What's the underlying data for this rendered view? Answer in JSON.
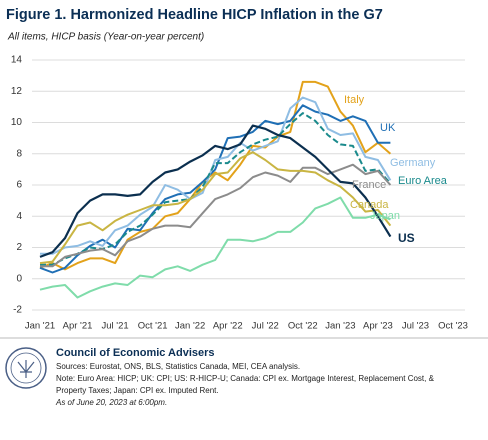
{
  "chart_data": {
    "type": "line",
    "title": "Figure 1. Harmonized Headline HICP Inflation in the G7",
    "subtitle": "All items, HICP basis (Year-on-year percent)",
    "categories": [
      "Jan '21",
      null,
      null,
      "Apr '21",
      null,
      null,
      "Jul '21",
      null,
      null,
      "Oct '21",
      null,
      null,
      "Jan '22",
      null,
      null,
      "Apr '22",
      null,
      null,
      "Jul '22",
      null,
      null,
      "Oct '22",
      null,
      null,
      "Jan '23",
      null,
      null,
      "Apr '23",
      null,
      null,
      "Jul '23",
      null,
      null,
      "Oct '23"
    ],
    "ylim": [
      -2,
      14
    ],
    "yticks": [
      -2,
      0,
      2,
      4,
      6,
      8,
      10,
      12,
      14
    ],
    "grid": true,
    "series": [
      {
        "name": "Italy",
        "color": "#e3a21a",
        "values": [
          0.7,
          1.0,
          0.6,
          1.0,
          1.3,
          1.3,
          1.0,
          2.5,
          3.0,
          3.2,
          4.0,
          4.2,
          5.1,
          6.2,
          6.8,
          6.3,
          7.3,
          8.5,
          8.4,
          9.1,
          9.4,
          12.6,
          12.6,
          12.3,
          10.7,
          9.8,
          8.1,
          8.7,
          8.0,
          null,
          null,
          null,
          null,
          null
        ]
      },
      {
        "name": "UK",
        "color": "#1f6fb5",
        "values": [
          0.7,
          0.4,
          0.7,
          1.5,
          2.1,
          2.5,
          2.0,
          3.2,
          3.1,
          4.2,
          5.1,
          5.4,
          5.5,
          6.2,
          7.0,
          9.0,
          9.1,
          9.4,
          10.1,
          9.9,
          10.1,
          11.1,
          10.7,
          10.5,
          10.1,
          10.4,
          10.1,
          8.7,
          8.7,
          null,
          null,
          null,
          null,
          null
        ]
      },
      {
        "name": "Germany",
        "color": "#8fbde3",
        "values": [
          1.6,
          1.6,
          2.0,
          2.1,
          2.4,
          2.1,
          3.1,
          3.4,
          4.1,
          4.6,
          6.0,
          5.7,
          5.1,
          5.5,
          7.6,
          7.8,
          8.7,
          8.2,
          8.5,
          8.8,
          10.9,
          11.6,
          11.3,
          9.6,
          9.2,
          9.3,
          7.8,
          7.6,
          6.3,
          null,
          null,
          null,
          null,
          null
        ]
      },
      {
        "name": "Euro Area",
        "color": "#1a8a8c",
        "style": "dashed",
        "values": [
          0.9,
          0.9,
          1.3,
          1.6,
          2.0,
          1.9,
          2.2,
          3.0,
          3.4,
          4.1,
          4.9,
          5.0,
          5.1,
          5.9,
          7.4,
          7.4,
          8.1,
          8.6,
          8.9,
          9.1,
          9.9,
          10.6,
          10.1,
          9.2,
          8.6,
          8.5,
          6.9,
          7.0,
          6.1,
          null,
          null,
          null,
          null,
          null
        ]
      },
      {
        "name": "France",
        "color": "#8c8c8c",
        "values": [
          0.8,
          0.8,
          1.4,
          1.6,
          1.8,
          1.9,
          1.5,
          2.4,
          2.7,
          3.2,
          3.4,
          3.4,
          3.3,
          4.2,
          5.1,
          5.4,
          5.8,
          6.5,
          6.8,
          6.6,
          6.2,
          7.1,
          7.1,
          6.7,
          7.0,
          7.3,
          6.7,
          6.9,
          6.0,
          null,
          null,
          null,
          null,
          null
        ]
      },
      {
        "name": "Canada",
        "color": "#c9b543",
        "values": [
          1.0,
          1.1,
          2.2,
          3.4,
          3.6,
          3.1,
          3.7,
          4.1,
          4.4,
          4.7,
          4.7,
          4.8,
          5.1,
          5.7,
          6.7,
          6.8,
          7.7,
          8.1,
          7.6,
          7.0,
          6.9,
          6.9,
          6.8,
          6.3,
          5.9,
          5.2,
          4.3,
          4.4,
          3.4,
          null,
          null,
          null,
          null,
          null
        ]
      },
      {
        "name": "Japan",
        "color": "#7fdcaa",
        "values": [
          -0.7,
          -0.5,
          -0.4,
          -1.2,
          -0.8,
          -0.5,
          -0.3,
          -0.4,
          0.2,
          0.1,
          0.6,
          0.8,
          0.5,
          0.9,
          1.2,
          2.5,
          2.5,
          2.4,
          2.6,
          3.0,
          3.0,
          3.6,
          4.5,
          4.8,
          5.2,
          3.9,
          3.9,
          4.1,
          3.8,
          null,
          null,
          null,
          null,
          null
        ]
      },
      {
        "name": "US",
        "color": "#0b2f4f",
        "values": [
          1.4,
          1.7,
          2.6,
          4.2,
          5.0,
          5.4,
          5.4,
          5.3,
          5.4,
          6.2,
          6.8,
          7.0,
          7.5,
          7.9,
          8.5,
          8.3,
          8.6,
          9.8,
          9.6,
          9.2,
          9.0,
          8.4,
          7.8,
          7.0,
          6.2,
          6.1,
          5.2,
          4.0,
          2.7,
          null,
          null,
          null,
          null,
          null
        ]
      }
    ]
  },
  "footer": {
    "org": "Council of Economic Advisers",
    "lines": [
      "Sources: Eurostat, ONS, BLS, Statistics Canada, MEI, CEA analysis.",
      "Note: Euro Area: HICP; UK: CPI; US: R-HICP-U; Canada: CPI ex. Mortgage Interest, Replacement Cost, &",
      "Property Taxes; Japan: CPI ex. Imputed Rent.",
      "As of June 20, 2023 at 6:00pm."
    ]
  }
}
